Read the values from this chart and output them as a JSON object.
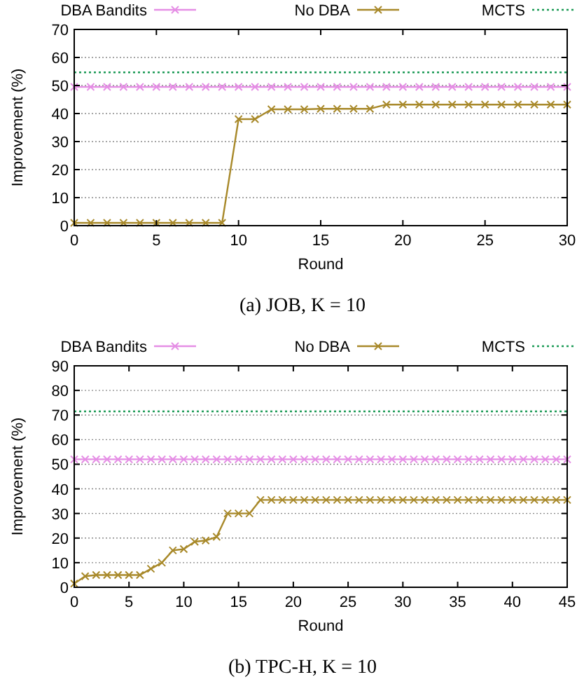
{
  "chart_data": [
    {
      "type": "line",
      "title": "(a) JOB, K = 10",
      "xlabel": "Round",
      "ylabel": "Improvement (%)",
      "xlim": [
        0,
        30
      ],
      "xticks": [
        0,
        5,
        10,
        15,
        20,
        25,
        30
      ],
      "ylim": [
        0,
        70
      ],
      "yticks": [
        0,
        10,
        20,
        30,
        40,
        50,
        60,
        70
      ],
      "grid": "y",
      "legend": "top",
      "series": [
        {
          "name": "DBA Bandits",
          "color": "#e58ee5",
          "marker": "cross",
          "line_style": "solid",
          "x": [
            0,
            1,
            2,
            3,
            4,
            5,
            6,
            7,
            8,
            9,
            10,
            11,
            12,
            13,
            14,
            15,
            16,
            17,
            18,
            19,
            20,
            21,
            22,
            23,
            24,
            25,
            26,
            27,
            28,
            29,
            30
          ],
          "values": [
            49.5,
            49.5,
            49.5,
            49.5,
            49.5,
            49.5,
            49.5,
            49.5,
            49.5,
            49.5,
            49.5,
            49.5,
            49.5,
            49.5,
            49.5,
            49.5,
            49.5,
            49.5,
            49.5,
            49.5,
            49.5,
            49.5,
            49.5,
            49.5,
            49.5,
            49.5,
            49.5,
            49.5,
            49.5,
            49.5,
            49.5
          ]
        },
        {
          "name": "No DBA",
          "color": "#a8892a",
          "marker": "cross",
          "line_style": "solid",
          "x": [
            0,
            1,
            2,
            3,
            4,
            5,
            6,
            7,
            8,
            9,
            10,
            11,
            12,
            13,
            14,
            15,
            16,
            17,
            18,
            19,
            20,
            21,
            22,
            23,
            24,
            25,
            26,
            27,
            28,
            29,
            30
          ],
          "values": [
            1,
            1,
            1,
            1,
            1,
            1,
            1,
            1,
            1,
            1,
            38,
            38,
            41.5,
            41.5,
            41.5,
            41.7,
            41.7,
            41.7,
            41.7,
            43.2,
            43.2,
            43.2,
            43.2,
            43.2,
            43.2,
            43.2,
            43.2,
            43.2,
            43.2,
            43.2,
            43.2
          ]
        },
        {
          "name": "MCTS",
          "color": "#1a9a55",
          "marker": "none",
          "line_style": "dotted",
          "x": [
            0,
            30
          ],
          "values": [
            54.7,
            54.7
          ]
        }
      ]
    },
    {
      "type": "line",
      "title": "(b) TPC-H, K = 10",
      "xlabel": "Round",
      "ylabel": "Improvement (%)",
      "xlim": [
        0,
        45
      ],
      "xticks": [
        0,
        5,
        10,
        15,
        20,
        25,
        30,
        35,
        40,
        45
      ],
      "ylim": [
        0,
        90
      ],
      "yticks": [
        0,
        10,
        20,
        30,
        40,
        50,
        60,
        70,
        80,
        90
      ],
      "grid": "y",
      "legend": "top",
      "series": [
        {
          "name": "DBA Bandits",
          "color": "#e58ee5",
          "marker": "cross",
          "line_style": "solid",
          "x": [
            0,
            1,
            2,
            3,
            4,
            5,
            6,
            7,
            8,
            9,
            10,
            11,
            12,
            13,
            14,
            15,
            16,
            17,
            18,
            19,
            20,
            21,
            22,
            23,
            24,
            25,
            26,
            27,
            28,
            29,
            30,
            31,
            32,
            33,
            34,
            35,
            36,
            37,
            38,
            39,
            40,
            41,
            42,
            43,
            44,
            45
          ],
          "values": [
            52,
            52,
            52,
            52,
            52,
            52,
            52,
            52,
            52,
            52,
            52,
            52,
            52,
            52,
            52,
            52,
            52,
            52,
            52,
            52,
            52,
            52,
            52,
            52,
            52,
            52,
            52,
            52,
            52,
            52,
            52,
            52,
            52,
            52,
            52,
            52,
            52,
            52,
            52,
            52,
            52,
            52,
            52,
            52,
            52,
            52
          ]
        },
        {
          "name": "No DBA",
          "color": "#a8892a",
          "marker": "cross",
          "line_style": "solid",
          "x": [
            0,
            1,
            2,
            3,
            4,
            5,
            6,
            7,
            8,
            9,
            10,
            11,
            12,
            13,
            14,
            15,
            16,
            17,
            18,
            19,
            20,
            21,
            22,
            23,
            24,
            25,
            26,
            27,
            28,
            29,
            30,
            31,
            32,
            33,
            34,
            35,
            36,
            37,
            38,
            39,
            40,
            41,
            42,
            43,
            44,
            45
          ],
          "values": [
            1.5,
            4.5,
            5,
            5,
            5,
            5,
            5,
            7.5,
            10,
            15,
            15.5,
            18.5,
            19,
            20.5,
            30,
            30,
            30,
            35.5,
            35.5,
            35.5,
            35.5,
            35.5,
            35.5,
            35.5,
            35.5,
            35.5,
            35.5,
            35.5,
            35.5,
            35.5,
            35.5,
            35.5,
            35.5,
            35.5,
            35.5,
            35.5,
            35.5,
            35.5,
            35.5,
            35.5,
            35.5,
            35.5,
            35.5,
            35.5,
            35.5,
            35.5
          ]
        },
        {
          "name": "MCTS",
          "color": "#1a9a55",
          "marker": "none",
          "line_style": "dotted",
          "x": [
            0,
            45
          ],
          "values": [
            71.5,
            71.5
          ]
        }
      ]
    }
  ]
}
